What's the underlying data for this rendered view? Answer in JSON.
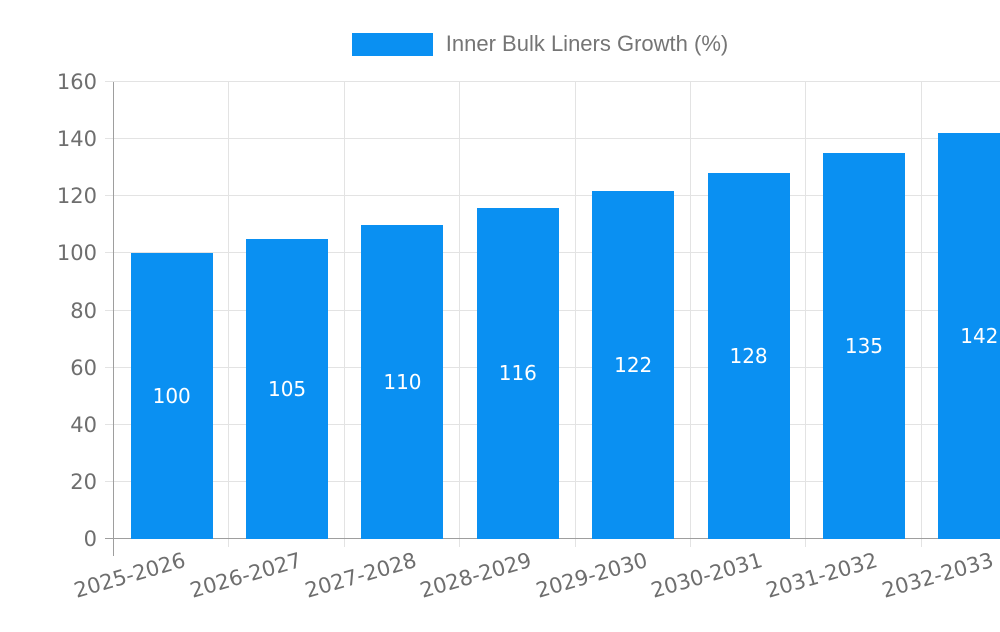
{
  "legend": {
    "label": "Inner Bulk Liners Growth (%)"
  },
  "chart_data": {
    "type": "bar",
    "title": "",
    "xlabel": "",
    "ylabel": "",
    "categories": [
      "2025-2026",
      "2026-2027",
      "2027-2028",
      "2028-2029",
      "2029-2030",
      "2030-2031",
      "2031-2032",
      "2032-2033"
    ],
    "series": [
      {
        "name": "Inner Bulk Liners Growth (%)",
        "values": [
          100,
          105,
          110,
          116,
          122,
          128,
          135,
          142
        ]
      }
    ],
    "value_labels": [
      100,
      105,
      110,
      116,
      122,
      128,
      135,
      142
    ],
    "ylim": [
      0,
      160
    ],
    "yticks": [
      0,
      20,
      40,
      60,
      80,
      100,
      120,
      140,
      160
    ],
    "grid": "horizontal-and-vertical",
    "legend_position": "top-center",
    "x_tick_label_rotation_deg": -16,
    "colors": {
      "bar": "#0a90f2",
      "value_label": "#ffffff",
      "axis_text": "#6e6e6e",
      "legend_text": "#757575",
      "grid_line": "#e3e3e3",
      "axis_line": "#9e9e9e",
      "background": "#ffffff"
    }
  }
}
